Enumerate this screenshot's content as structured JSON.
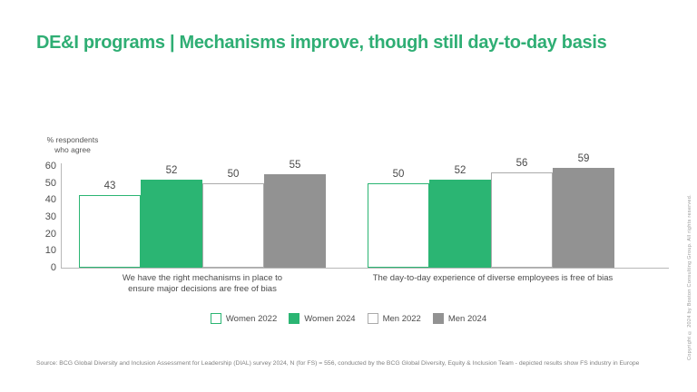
{
  "header": {
    "title": "DE&I programs | Mechanisms improve, though still day-to-day basis"
  },
  "chart_data": {
    "type": "bar",
    "title": "DE&I programs | Mechanisms improve, though still day-to-day basis",
    "ylabel": "% respondents who agree",
    "ylabel_lines": [
      "% respondents",
      "who agree"
    ],
    "xlabel": "",
    "ylim": [
      0,
      60
    ],
    "yticks": [
      0,
      10,
      20,
      30,
      40,
      50,
      60
    ],
    "grid": false,
    "legend_position": "bottom-center",
    "categories": [
      "We have the right mechanisms in place to ensure major decisions are free of bias",
      "The day-to-day experience of diverse employees is free of bias"
    ],
    "category_lines": [
      [
        "We have the right mechanisms in place to",
        "ensure major decisions are free of bias"
      ],
      [
        "The day-to-day experience of diverse employees is free of bias"
      ]
    ],
    "series": [
      {
        "name": "Women 2022",
        "values": [
          43,
          50
        ],
        "fill": "#ffffff",
        "border": "#2bb573"
      },
      {
        "name": "Women 2024",
        "values": [
          52,
          52
        ],
        "fill": "#2bb573",
        "border": "#2bb573"
      },
      {
        "name": "Men 2022",
        "values": [
          50,
          56
        ],
        "fill": "#ffffff",
        "border": "#ababab"
      },
      {
        "name": "Men 2024",
        "values": [
          55,
          59
        ],
        "fill": "#929292",
        "border": "#929292"
      }
    ]
  },
  "footer": {
    "source": "Source: BCG Global Diversity and Inclusion Assessment for Leadership (DIAL) survey 2024, N (for FS) = 556, conducted by the BCG Global Diversity, Equity & Inclusion Team - depicted results show FS industry in Europe",
    "copyright": "Copyright © 2024 by Boston Consulting Group. All rights reserved."
  },
  "colors": {
    "accent_green": "#2bb573",
    "title_green": "#2fae74",
    "bar_gray": "#929292",
    "outline_gray": "#ababab",
    "axis_gray": "#b8b8b8",
    "text_dark": "#4c4c4c",
    "text_muted": "#818181"
  }
}
